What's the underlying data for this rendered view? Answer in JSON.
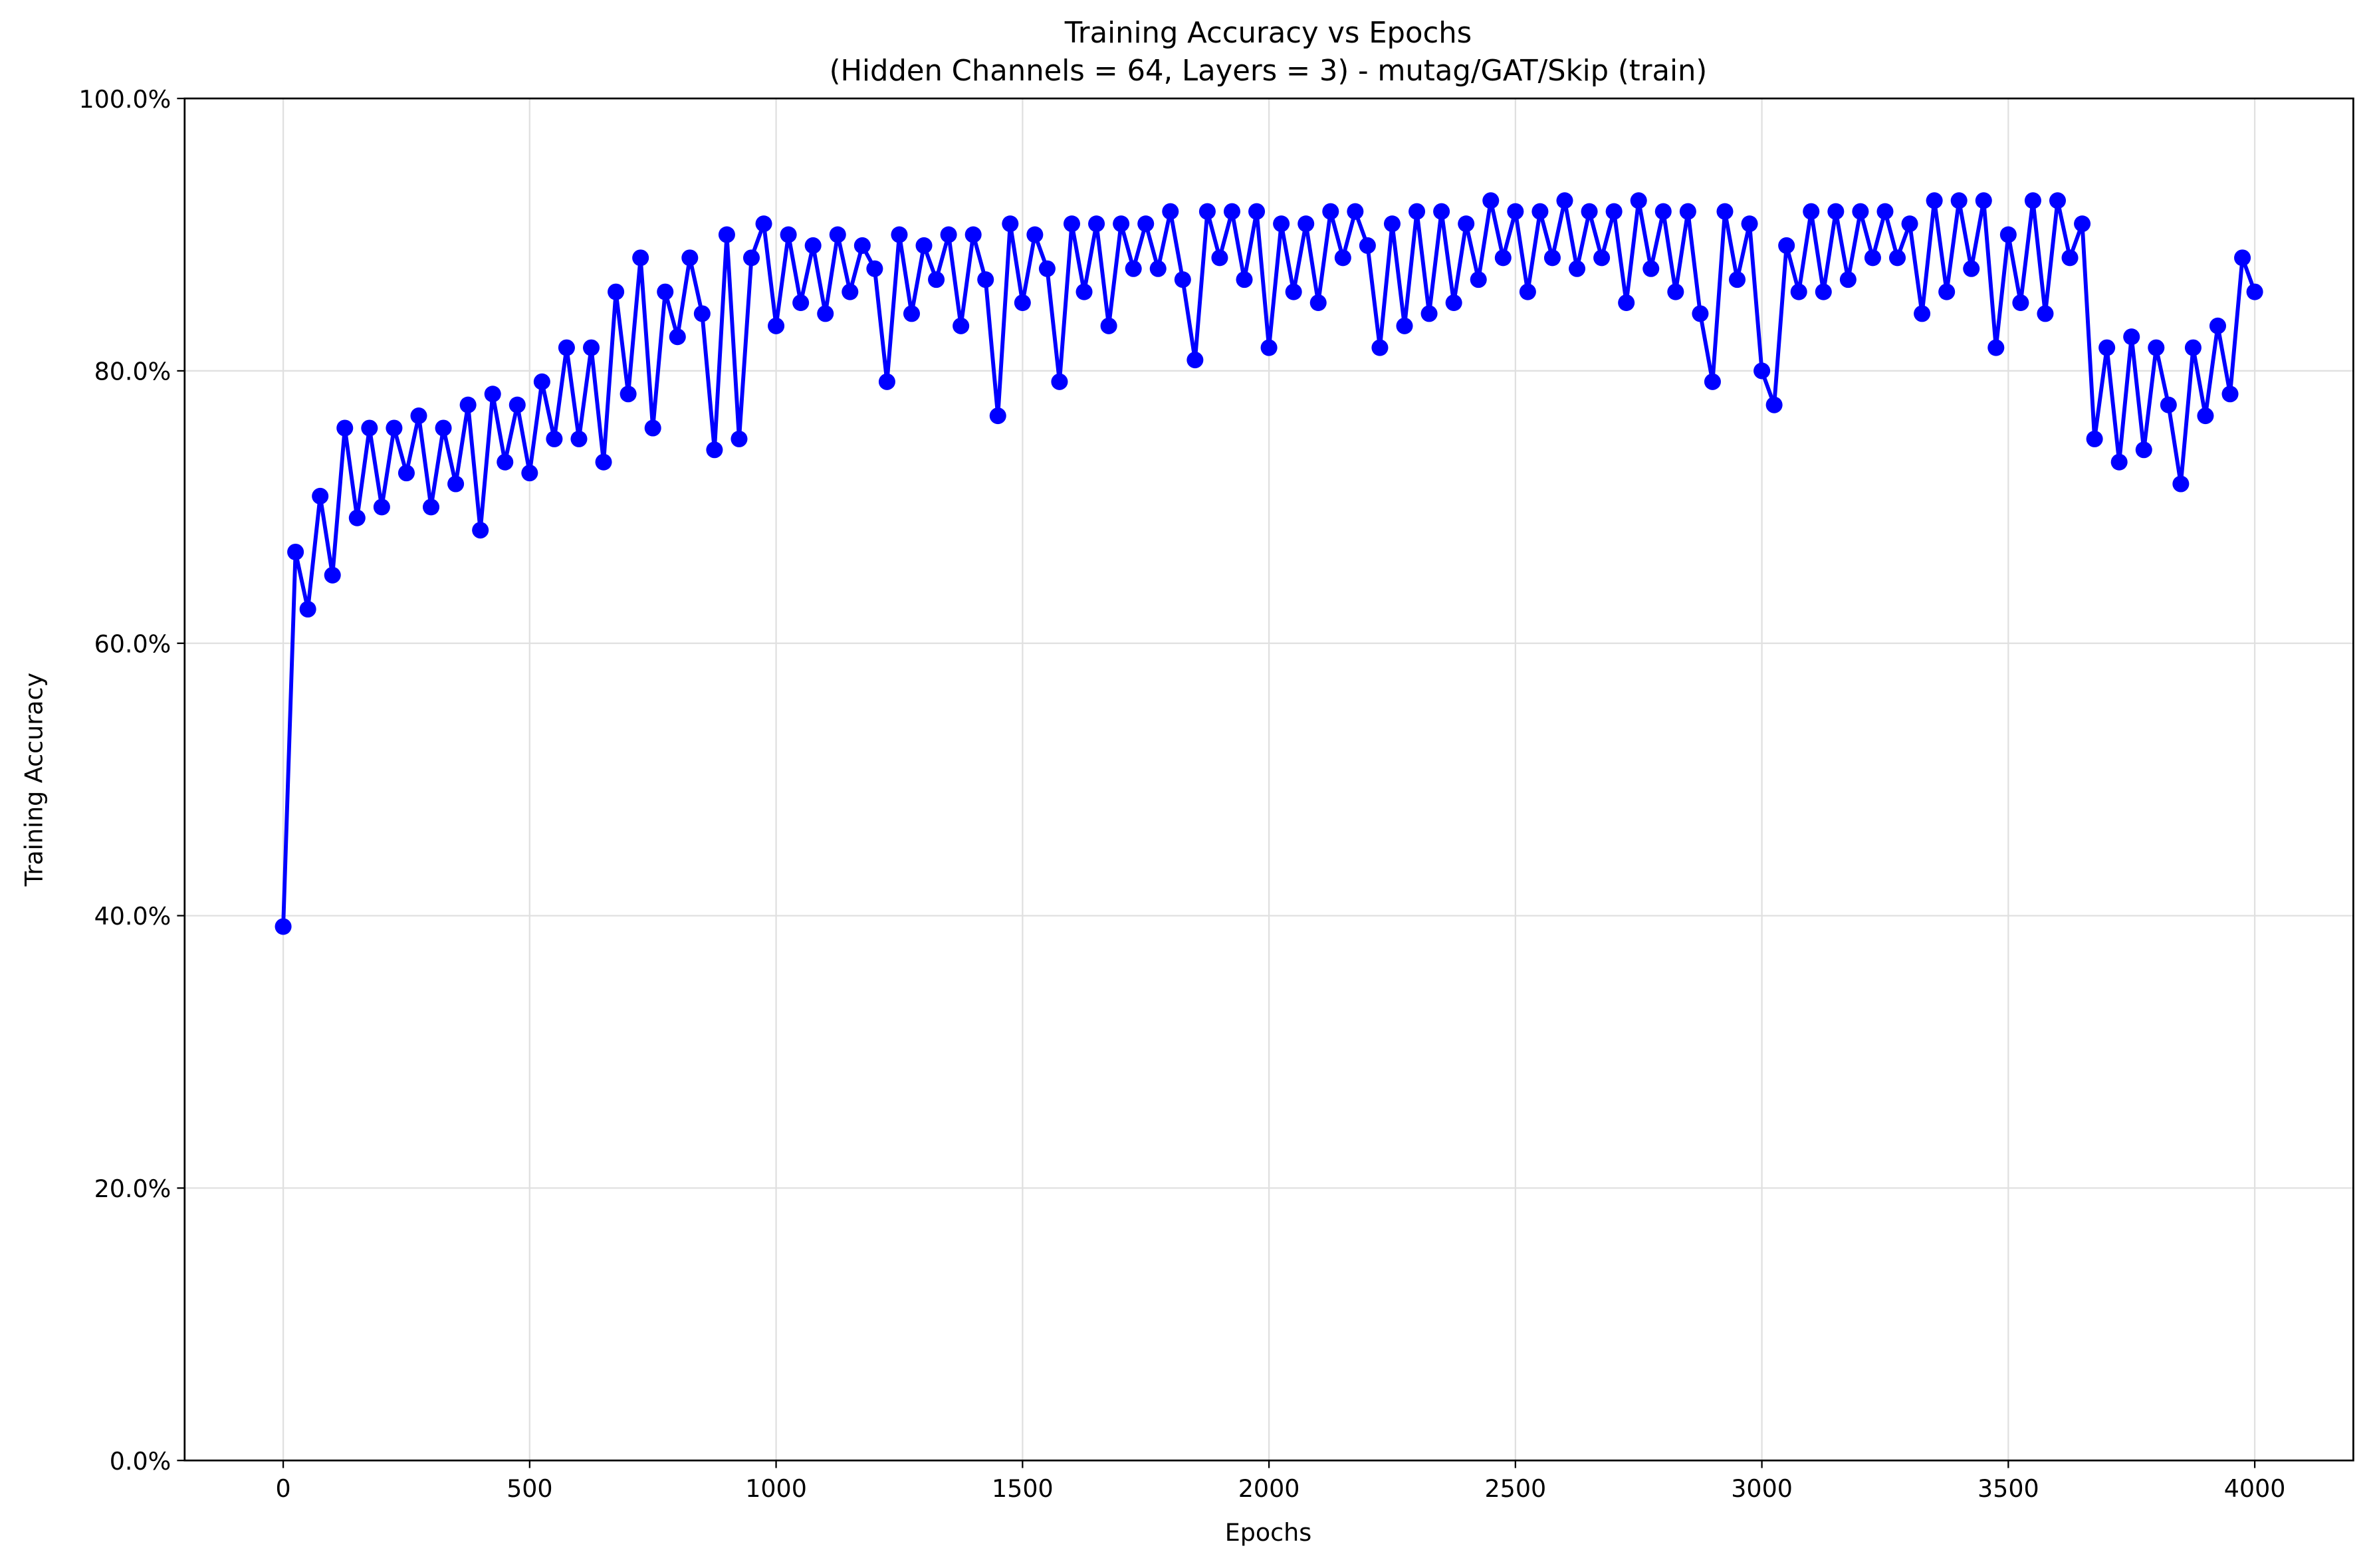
{
  "chart_data": {
    "type": "line",
    "title": "Training Accuracy vs Epochs",
    "subtitle": "(Hidden Channels = 64, Layers = 3) - mutag/GAT/Skip (train)",
    "x_label": "Epochs",
    "y_label": "Training Accuracy",
    "xlim": [
      -200,
      4200
    ],
    "xticks": [
      0,
      500,
      1000,
      1500,
      2000,
      2500,
      3000,
      3500,
      4000
    ],
    "ylim": [
      0,
      100
    ],
    "yticks": [
      {
        "value": 0,
        "label": "0.0%"
      },
      {
        "value": 20,
        "label": "20.0%"
      },
      {
        "value": 40,
        "label": "40.0%"
      },
      {
        "value": 60,
        "label": "60.0%"
      },
      {
        "value": 80,
        "label": "80.0%"
      },
      {
        "value": 100,
        "label": "100.0%"
      }
    ],
    "grid": true,
    "x": [
      0,
      25,
      50,
      75,
      100,
      125,
      150,
      175,
      200,
      225,
      250,
      275,
      300,
      325,
      350,
      375,
      400,
      425,
      450,
      475,
      500,
      525,
      550,
      575,
      600,
      625,
      650,
      675,
      700,
      725,
      750,
      775,
      800,
      825,
      850,
      875,
      900,
      925,
      950,
      975,
      1000,
      1025,
      1050,
      1075,
      1100,
      1125,
      1150,
      1175,
      1200,
      1225,
      1250,
      1275,
      1300,
      1325,
      1350,
      1375,
      1400,
      1425,
      1450,
      1475,
      1500,
      1525,
      1550,
      1575,
      1600,
      1625,
      1650,
      1675,
      1700,
      1725,
      1750,
      1775,
      1800,
      1825,
      1850,
      1875,
      1900,
      1925,
      1950,
      1975,
      2000,
      2025,
      2050,
      2075,
      2100,
      2125,
      2150,
      2175,
      2200,
      2225,
      2250,
      2275,
      2300,
      2325,
      2350,
      2375,
      2400,
      2425,
      2450,
      2475,
      2500,
      2525,
      2550,
      2575,
      2600,
      2625,
      2650,
      2675,
      2700,
      2725,
      2750,
      2775,
      2800,
      2825,
      2850,
      2875,
      2900,
      2925,
      2950,
      2975,
      3000,
      3025,
      3050,
      3075,
      3100,
      3125,
      3150,
      3175,
      3200,
      3225,
      3250,
      3275,
      3300,
      3325,
      3350,
      3375,
      3400,
      3425,
      3450,
      3475,
      3500,
      3525,
      3550,
      3575,
      3600,
      3625,
      3650,
      3675,
      3700,
      3725,
      3750,
      3775,
      3800,
      3825,
      3850,
      3875,
      3900,
      3925,
      3950,
      3975,
      4000
    ],
    "series": [
      {
        "color": "#0000ff",
        "values": [
          39.2,
          66.7,
          62.5,
          70.8,
          65.0,
          75.8,
          69.2,
          75.8,
          70.0,
          75.8,
          72.5,
          76.7,
          70.0,
          75.8,
          71.7,
          77.5,
          68.3,
          78.3,
          73.3,
          77.5,
          72.5,
          79.2,
          75.0,
          81.7,
          75.0,
          81.7,
          73.3,
          85.8,
          78.3,
          88.3,
          75.8,
          85.8,
          82.5,
          88.3,
          84.2,
          74.2,
          90.0,
          75.0,
          88.3,
          90.8,
          83.3,
          90.0,
          85.0,
          89.2,
          84.2,
          90.0,
          85.8,
          89.2,
          87.5,
          79.2,
          90.0,
          84.2,
          89.2,
          86.7,
          90.0,
          83.3,
          90.0,
          86.7,
          76.7,
          90.8,
          85.0,
          90.0,
          87.5,
          79.2,
          90.8,
          85.8,
          90.8,
          83.3,
          90.8,
          87.5,
          90.8,
          87.5,
          91.7,
          86.7,
          80.8,
          91.7,
          88.3,
          91.7,
          86.7,
          91.7,
          81.7,
          90.8,
          85.8,
          90.8,
          85.0,
          91.7,
          88.3,
          91.7,
          89.2,
          81.7,
          90.8,
          83.3,
          91.7,
          84.2,
          91.7,
          85.0,
          90.8,
          86.7,
          92.5,
          88.3,
          91.7,
          85.8,
          91.7,
          88.3,
          92.5,
          87.5,
          91.7,
          88.3,
          91.7,
          85.0,
          92.5,
          87.5,
          91.7,
          85.8,
          91.7,
          84.2,
          79.2,
          91.7,
          86.7,
          90.8,
          80.0,
          77.5,
          89.2,
          85.8,
          91.7,
          85.8,
          91.7,
          86.7,
          91.7,
          88.3,
          91.7,
          88.3,
          90.8,
          84.2,
          92.5,
          85.8,
          92.5,
          87.5,
          92.5,
          81.7,
          90.0,
          85.0,
          92.5,
          84.2,
          92.5,
          88.3,
          90.8,
          75.0,
          81.7,
          73.3,
          82.5,
          74.2,
          81.7,
          77.5,
          71.7,
          81.7,
          76.7,
          83.3,
          78.3,
          88.3,
          85.8
        ]
      }
    ]
  }
}
